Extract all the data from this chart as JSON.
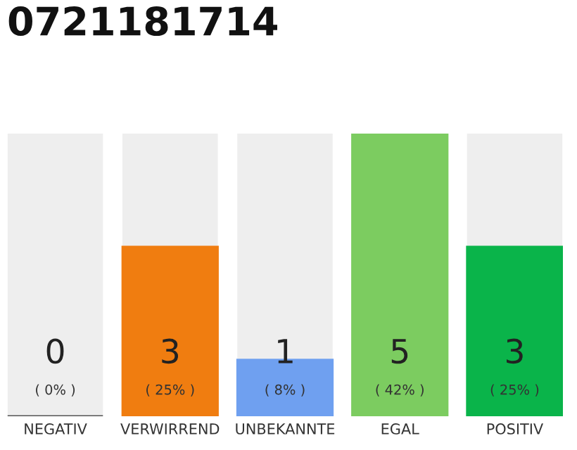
{
  "chart_data": {
    "type": "bar",
    "title": "0721181714",
    "categories": [
      "NEGATIV",
      "VERWIRREND",
      "UNBEKANNTE",
      "EGAL",
      "POSITIV"
    ],
    "values": [
      0,
      3,
      1,
      5,
      3
    ],
    "colors": [
      "#555555",
      "#f07d10",
      "#6fa0f0",
      "#7ccc60",
      "#0ab44a"
    ],
    "ylim": [
      0,
      5
    ],
    "tick_labels": "x",
    "data_labels": true,
    "grid": false,
    "legend": false,
    "annotations": [
      "( 0% )",
      "( 25% )",
      "( 8% )",
      "( 42% )",
      "( 25% )"
    ]
  }
}
